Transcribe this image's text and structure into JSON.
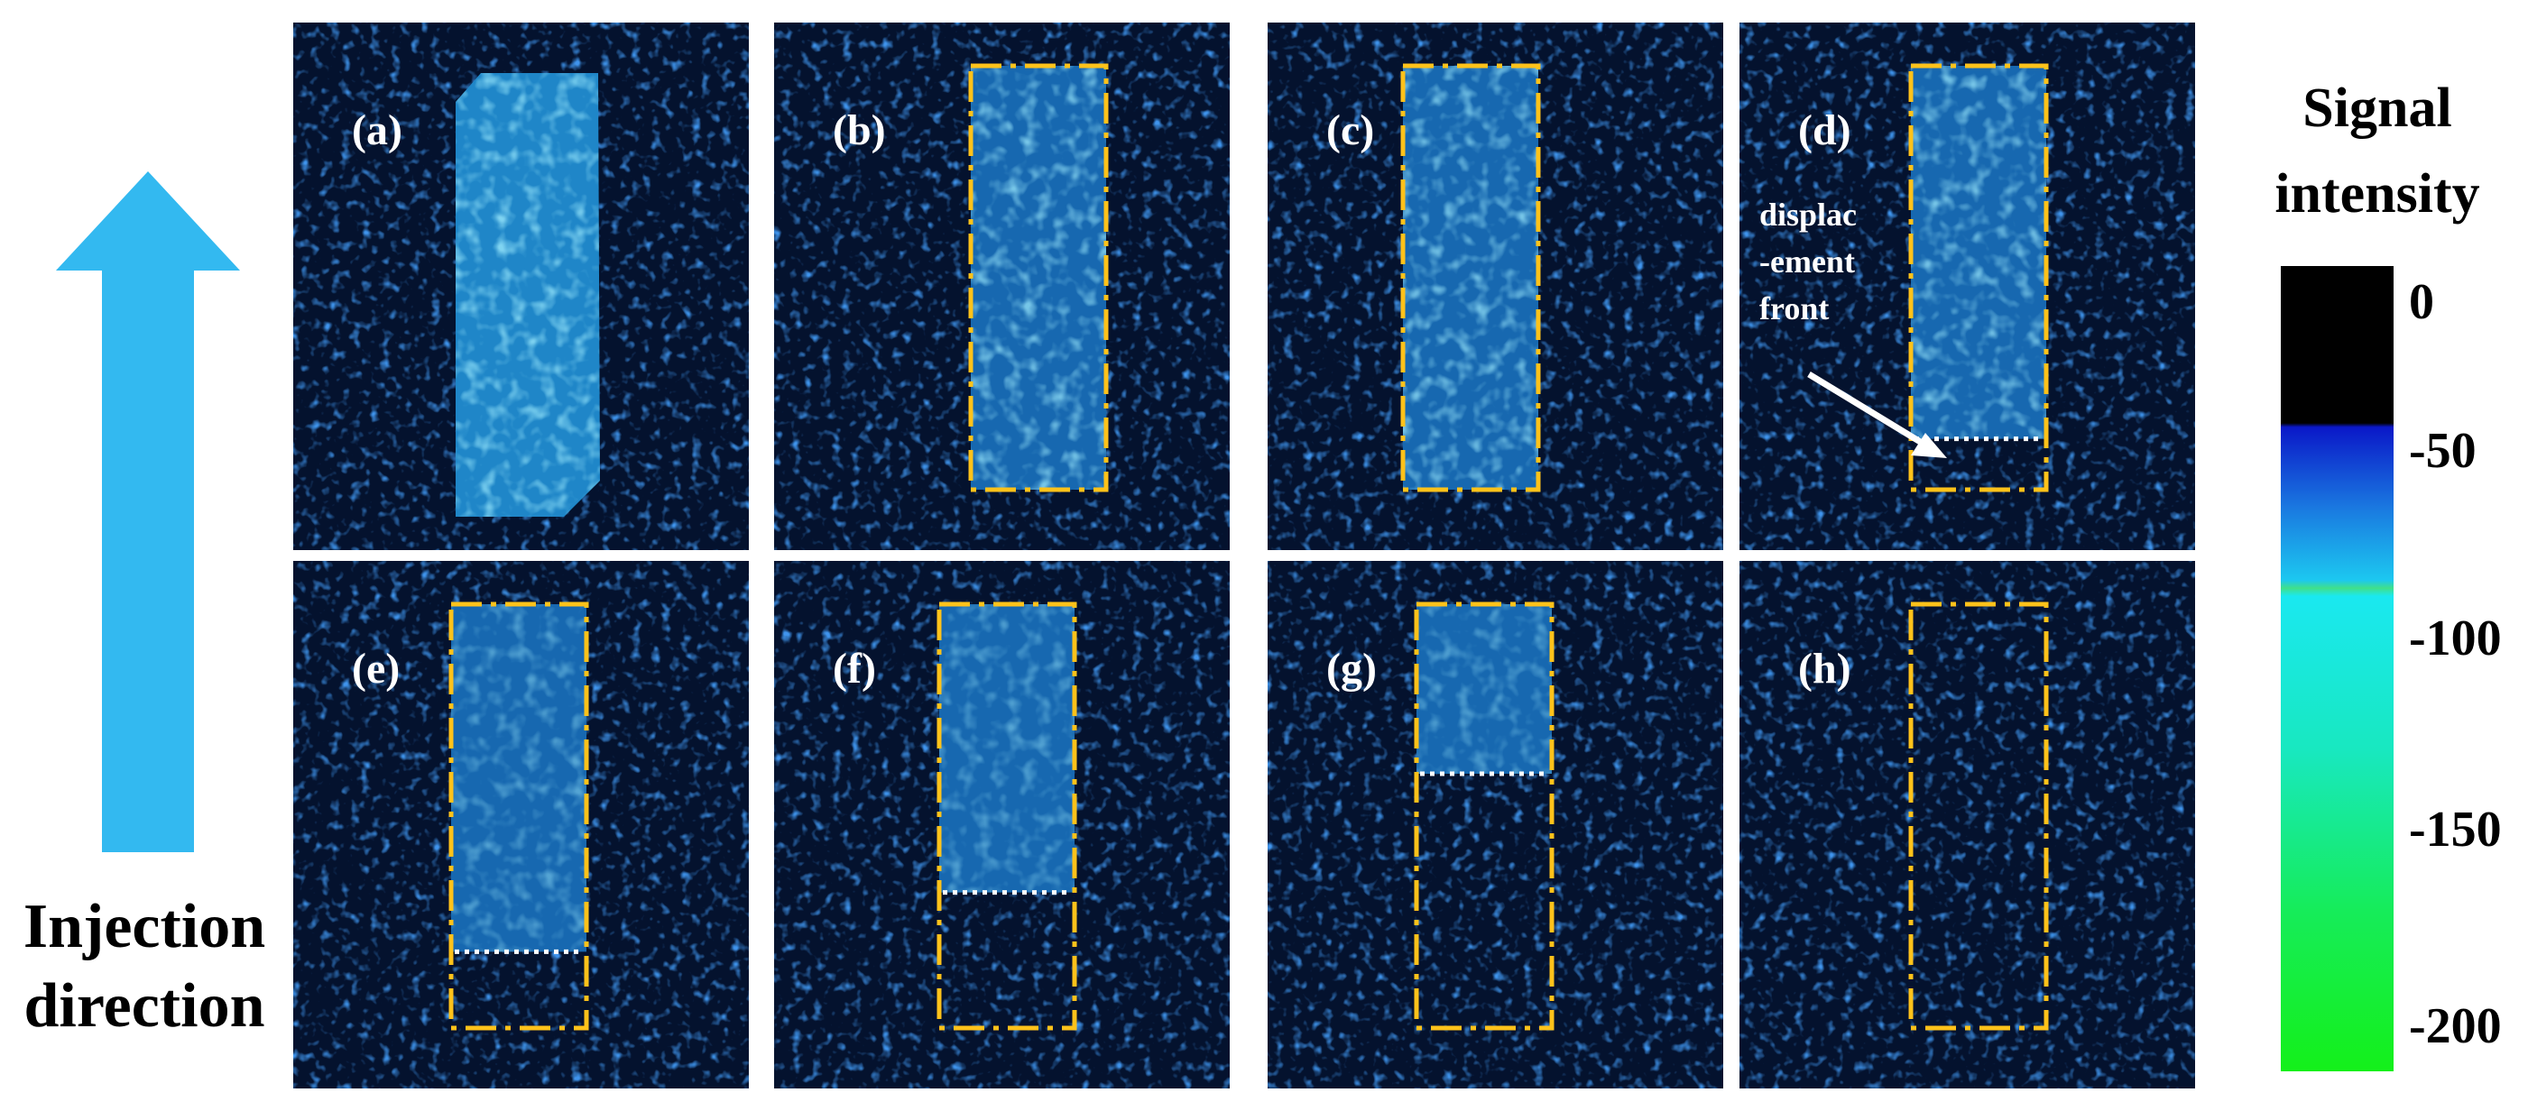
{
  "figure": {
    "injection_label": [
      "Injection",
      "direction"
    ],
    "colorbar_title": [
      "Signal",
      "intensity"
    ],
    "colorbar_ticks": [
      "0",
      "-50",
      "-100",
      "-150",
      "-200"
    ],
    "colors": {
      "arrow": "#33b9f0",
      "box": "#ffc21a",
      "front_line": "#ffffff",
      "background_noise": "#06163a"
    },
    "colorbar_bands": [
      {
        "color": "#000000"
      },
      {
        "color": "#0a2be0"
      },
      {
        "color": "#1ad6f0"
      },
      {
        "color": "#16f01e"
      }
    ],
    "annotation": [
      "displac",
      "-ement",
      "front"
    ],
    "panels": [
      {
        "label": "(a)",
        "fill": 1.0,
        "front": false,
        "dashed_box": false
      },
      {
        "label": "(b)",
        "fill": 1.0,
        "front": false,
        "dashed_box": true
      },
      {
        "label": "(c)",
        "fill": 1.0,
        "front": false,
        "dashed_box": true
      },
      {
        "label": "(d)",
        "fill": 0.88,
        "front": true,
        "dashed_box": true
      },
      {
        "label": "(e)",
        "fill": 0.82,
        "front": true,
        "dashed_box": true
      },
      {
        "label": "(f)",
        "fill": 0.68,
        "front": true,
        "dashed_box": true
      },
      {
        "label": "(g)",
        "fill": 0.4,
        "front": true,
        "dashed_box": true
      },
      {
        "label": "(h)",
        "fill": 0.0,
        "front": false,
        "dashed_box": true
      }
    ]
  }
}
